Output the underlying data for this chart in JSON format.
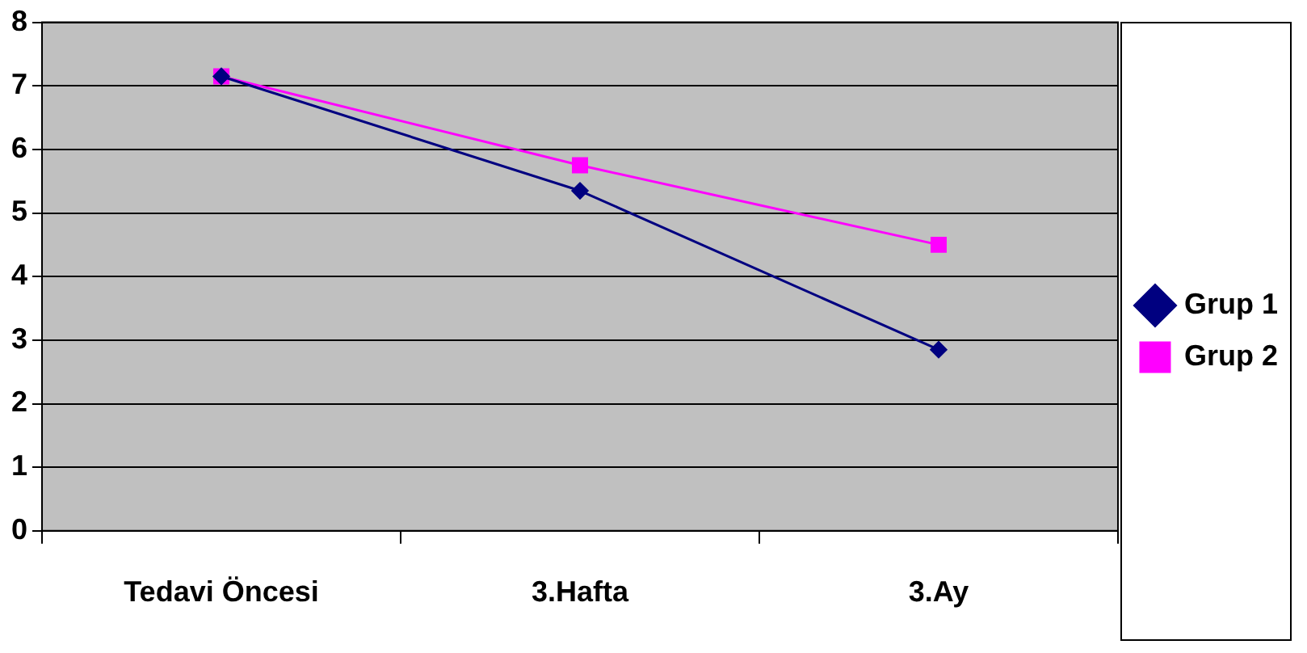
{
  "chart_data": {
    "type": "line",
    "categories": [
      "Tedavi Öncesi",
      "3.Hafta",
      "3.Ay"
    ],
    "series": [
      {
        "name": "Grup 1",
        "color": "#000080",
        "marker": "diamond",
        "values": [
          7.15,
          5.35,
          2.85
        ]
      },
      {
        "name": "Grup 2",
        "color": "#ff00ff",
        "marker": "square",
        "values": [
          7.15,
          5.75,
          4.5
        ]
      }
    ],
    "ylim": [
      0,
      8
    ],
    "yticks": [
      0,
      1,
      2,
      3,
      4,
      5,
      6,
      7,
      8
    ],
    "grid": "y",
    "legend": "right",
    "line_style": "solid"
  }
}
